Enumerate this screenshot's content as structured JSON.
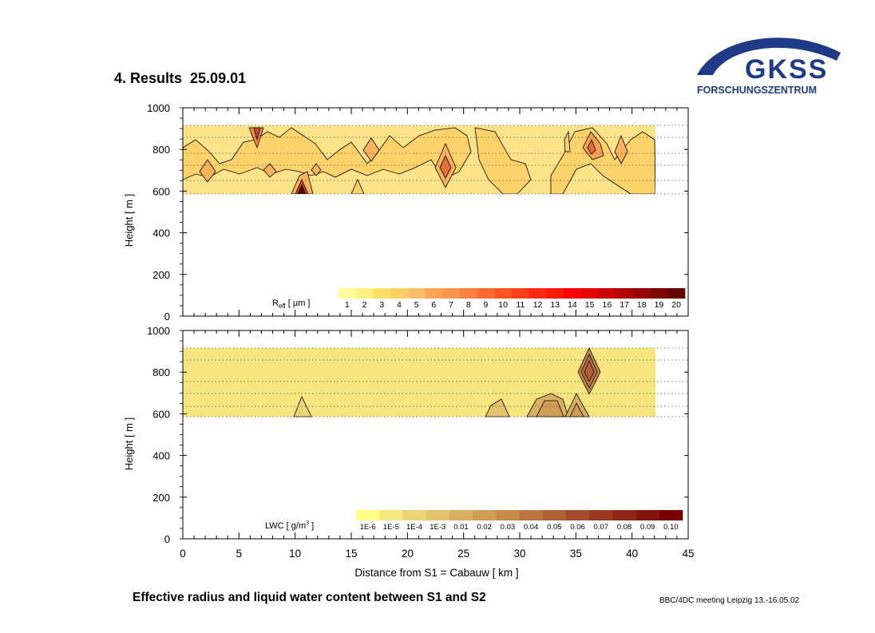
{
  "slide": {
    "title": "4. Results  25.09.01",
    "caption": "Effective radius and liquid water content between S1 and S2",
    "footer": "BBC/4DC meeting Leipzig 13.-16.05.02"
  },
  "logo": {
    "name": "GKSS",
    "subtitle": "FORSCHUNGSZENTRUM",
    "color": "#1f3a87"
  },
  "chart_data": [
    {
      "type": "heatmap",
      "ylabel": "Height [ m ]",
      "xlabel": "",
      "xlim": [
        0,
        45
      ],
      "ylim": [
        0,
        1000
      ],
      "yticks": [
        0,
        200,
        400,
        600,
        800,
        1000
      ],
      "grid": "dotted",
      "cloud_region": {
        "x": [
          0,
          42
        ],
        "y": [
          590,
          910
        ]
      },
      "colorbar": {
        "label": "Reff [ µm ]",
        "label_main": "R",
        "label_sub": "eff",
        "label_tail": " [ µm ]",
        "ticks": [
          "1",
          "2",
          "3",
          "4",
          "5",
          "6",
          "7",
          "8",
          "9",
          "10",
          "11",
          "12",
          "13",
          "14",
          "15",
          "16",
          "17",
          "18",
          "19",
          "20"
        ],
        "colors": [
          "#ffff99",
          "#fff080",
          "#ffe066",
          "#ffd066",
          "#ffbf66",
          "#ffa655",
          "#ff944d",
          "#ff8040",
          "#ff6a33",
          "#ff5526",
          "#ff4019",
          "#ff2a10",
          "#ff1a08",
          "#ff0000",
          "#e60000",
          "#cc0000",
          "#b30000",
          "#990000",
          "#800000",
          "#660000"
        ]
      }
    },
    {
      "type": "heatmap",
      "ylabel": "Height [ m ]",
      "xlabel": "Distance from S1 = Cabauw [ km ]",
      "xlim": [
        0,
        45
      ],
      "ylim": [
        0,
        1000
      ],
      "xticks": [
        0,
        5,
        10,
        15,
        20,
        25,
        30,
        35,
        40,
        45
      ],
      "yticks": [
        0,
        200,
        400,
        600,
        800,
        1000
      ],
      "grid": "dotted",
      "cloud_region": {
        "x": [
          0,
          42
        ],
        "y": [
          590,
          910
        ]
      },
      "colorbar": {
        "label": "LWC [ g/m3 ]",
        "label_main": "LWC [ g/m",
        "label_sup": "3",
        "label_tail": " ]",
        "ticks": [
          "1E-6",
          "1E-5",
          "1E-4",
          "1E-3",
          "0.01",
          "0.02",
          "0.03",
          "0.04",
          "0.05",
          "0.06",
          "0.07",
          "0.08",
          "0.09",
          "0.10"
        ],
        "colors": [
          "#ffff88",
          "#f5e880",
          "#ecd575",
          "#e3c36b",
          "#d9b060",
          "#cf9d55",
          "#c5894a",
          "#bb7540",
          "#b06035",
          "#a54c2a",
          "#9a3820",
          "#8f2515",
          "#84140b",
          "#790000"
        ]
      }
    }
  ]
}
